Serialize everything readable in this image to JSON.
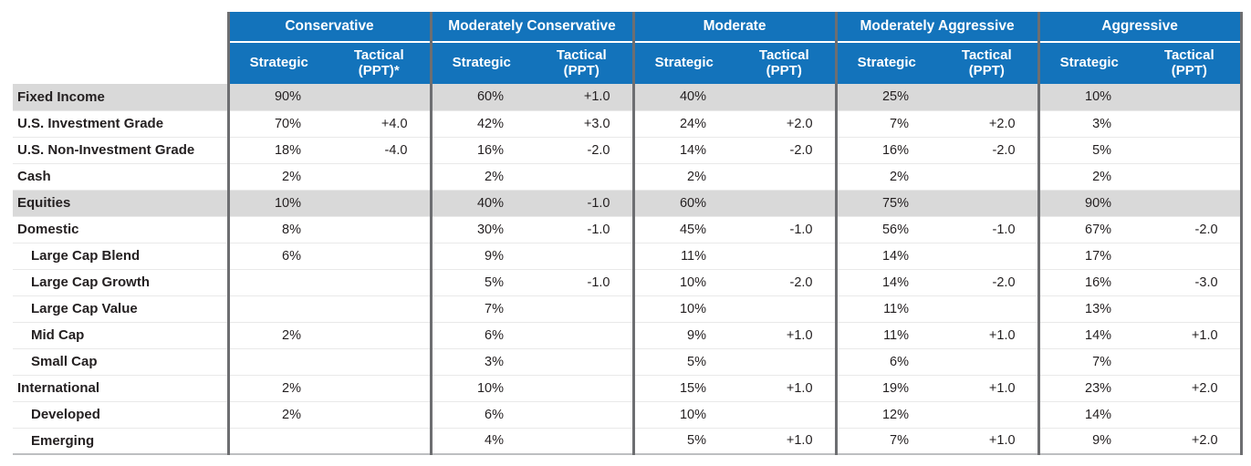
{
  "colors": {
    "header_blue": "#1373bb",
    "band_gray": "#d9d9d9",
    "section_divider": "#6d6e71",
    "bottom_border": "#bdbfc1",
    "row_hairline": "#e9e9e9",
    "text": "#231f20",
    "header_text": "#ffffff"
  },
  "table": {
    "groups": [
      {
        "label": "Conservative",
        "strategic": "Strategic",
        "tactical": "Tactical\n(PPT)*"
      },
      {
        "label": "Moderately Conservative",
        "strategic": "Strategic",
        "tactical": "Tactical\n(PPT)"
      },
      {
        "label": "Moderate",
        "strategic": "Strategic",
        "tactical": "Tactical\n(PPT)"
      },
      {
        "label": "Moderately Aggressive",
        "strategic": "Strategic",
        "tactical": "Tactical\n(PPT)"
      },
      {
        "label": "Aggressive",
        "strategic": "Strategic",
        "tactical": "Tactical\n(PPT)"
      }
    ],
    "rows": [
      {
        "label": "Fixed Income",
        "band": true,
        "indent": false,
        "values": [
          "90%",
          "",
          "60%",
          "+1.0",
          "40%",
          "",
          "25%",
          "",
          "10%",
          ""
        ]
      },
      {
        "label": "U.S. Investment Grade",
        "band": false,
        "indent": false,
        "values": [
          "70%",
          "+4.0",
          "42%",
          "+3.0",
          "24%",
          "+2.0",
          "7%",
          "+2.0",
          "3%",
          ""
        ]
      },
      {
        "label": "U.S. Non-Investment Grade",
        "band": false,
        "indent": false,
        "values": [
          "18%",
          "-4.0",
          "16%",
          "-2.0",
          "14%",
          "-2.0",
          "16%",
          "-2.0",
          "5%",
          ""
        ]
      },
      {
        "label": "Cash",
        "band": false,
        "indent": false,
        "values": [
          "2%",
          "",
          "2%",
          "",
          "2%",
          "",
          "2%",
          "",
          "2%",
          ""
        ]
      },
      {
        "label": "Equities",
        "band": true,
        "indent": false,
        "values": [
          "10%",
          "",
          "40%",
          "-1.0",
          "60%",
          "",
          "75%",
          "",
          "90%",
          ""
        ]
      },
      {
        "label": "Domestic",
        "band": false,
        "indent": false,
        "values": [
          "8%",
          "",
          "30%",
          "-1.0",
          "45%",
          "-1.0",
          "56%",
          "-1.0",
          "67%",
          "-2.0"
        ]
      },
      {
        "label": "Large Cap Blend",
        "band": false,
        "indent": true,
        "values": [
          "6%",
          "",
          "9%",
          "",
          "11%",
          "",
          "14%",
          "",
          "17%",
          ""
        ]
      },
      {
        "label": "Large Cap Growth",
        "band": false,
        "indent": true,
        "values": [
          "",
          "",
          "5%",
          "-1.0",
          "10%",
          "-2.0",
          "14%",
          "-2.0",
          "16%",
          "-3.0"
        ]
      },
      {
        "label": "Large Cap Value",
        "band": false,
        "indent": true,
        "values": [
          "",
          "",
          "7%",
          "",
          "10%",
          "",
          "11%",
          "",
          "13%",
          ""
        ]
      },
      {
        "label": "Mid Cap",
        "band": false,
        "indent": true,
        "values": [
          "2%",
          "",
          "6%",
          "",
          "9%",
          "+1.0",
          "11%",
          "+1.0",
          "14%",
          "+1.0"
        ]
      },
      {
        "label": "Small Cap",
        "band": false,
        "indent": true,
        "values": [
          "",
          "",
          "3%",
          "",
          "5%",
          "",
          "6%",
          "",
          "7%",
          ""
        ]
      },
      {
        "label": "International",
        "band": false,
        "indent": false,
        "values": [
          "2%",
          "",
          "10%",
          "",
          "15%",
          "+1.0",
          "19%",
          "+1.0",
          "23%",
          "+2.0"
        ]
      },
      {
        "label": "Developed",
        "band": false,
        "indent": true,
        "values": [
          "2%",
          "",
          "6%",
          "",
          "10%",
          "",
          "12%",
          "",
          "14%",
          ""
        ]
      },
      {
        "label": "Emerging",
        "band": false,
        "indent": true,
        "values": [
          "",
          "",
          "4%",
          "",
          "5%",
          "+1.0",
          "7%",
          "+1.0",
          "9%",
          "+2.0"
        ]
      }
    ]
  }
}
